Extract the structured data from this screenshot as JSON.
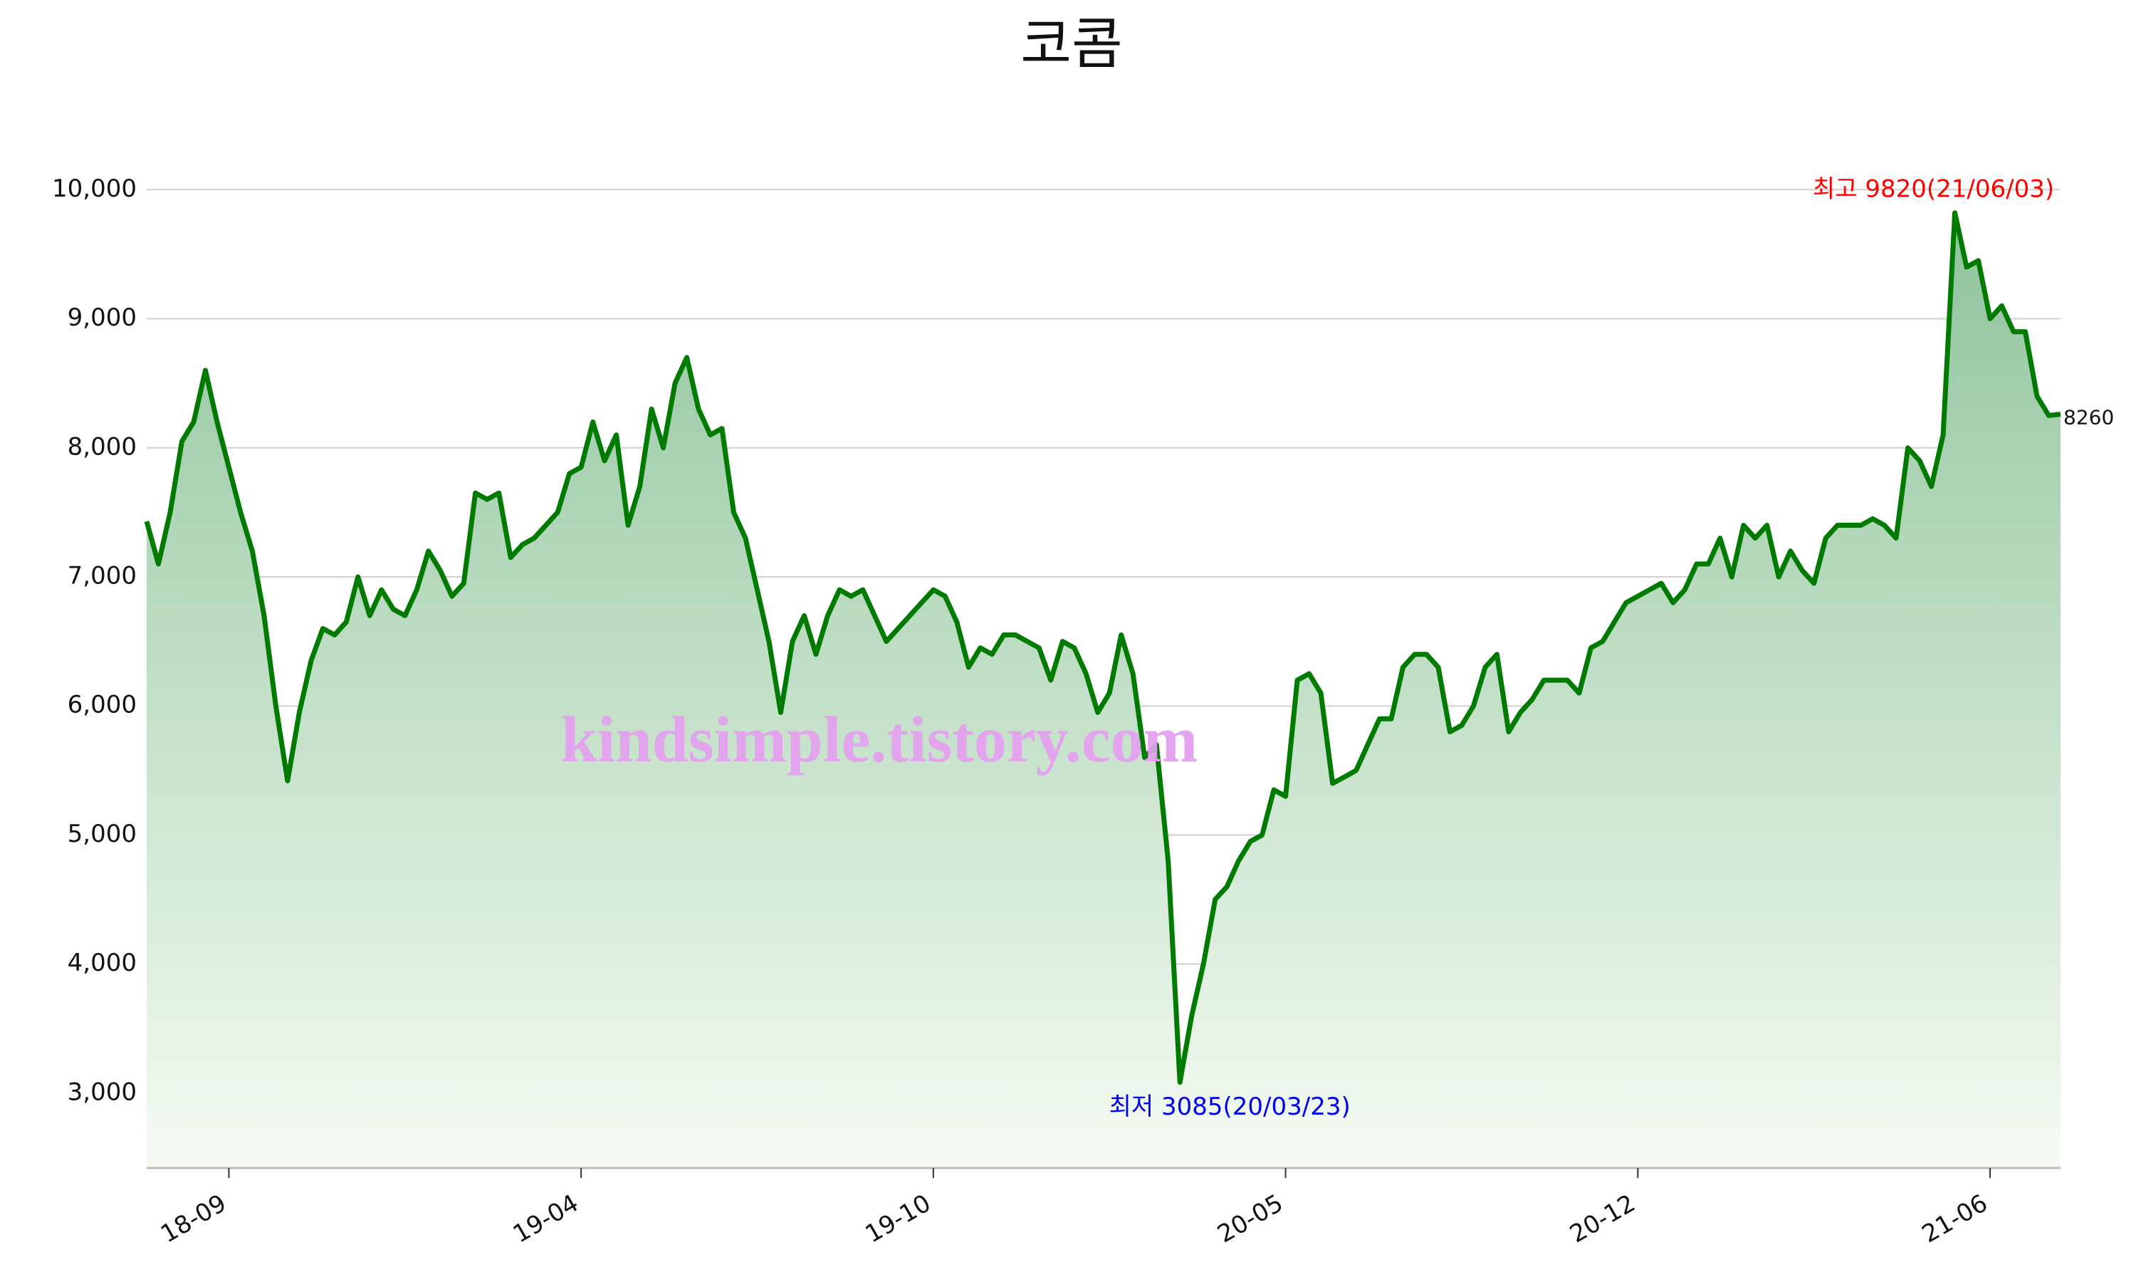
{
  "chart_data": {
    "type": "area-line",
    "title": "코콤",
    "watermark": "kindsimple.tistory.com",
    "color": "#007a00",
    "fill_top": "#8fc49c",
    "fill_bottom": "#f5fbf3",
    "grid": true,
    "categories": [
      null,
      null,
      null,
      null,
      null,
      null,
      null,
      "18-09",
      null,
      null,
      null,
      null,
      null,
      null,
      null,
      null,
      null,
      null,
      null,
      null,
      null,
      null,
      null,
      null,
      null,
      null,
      null,
      null,
      null,
      null,
      null,
      null,
      null,
      null,
      null,
      null,
      null,
      "19-04",
      null,
      null,
      null,
      null,
      null,
      null,
      null,
      null,
      null,
      null,
      null,
      null,
      null,
      null,
      null,
      null,
      null,
      null,
      null,
      null,
      null,
      null,
      null,
      null,
      null,
      null,
      null,
      null,
      null,
      "19-10",
      null,
      null,
      null,
      null,
      null,
      null,
      null,
      null,
      null,
      null,
      null,
      null,
      null,
      null,
      null,
      null,
      null,
      null,
      null,
      null,
      null,
      null,
      null,
      null,
      null,
      null,
      null,
      null,
      null,
      "20-05",
      null,
      null,
      null,
      null,
      null,
      null,
      null,
      null,
      null,
      null,
      null,
      null,
      null,
      null,
      null,
      null,
      null,
      null,
      null,
      null,
      null,
      null,
      null,
      null,
      null,
      null,
      null,
      null,
      null,
      "20-12",
      null,
      null,
      null,
      null,
      null,
      null,
      null,
      null,
      null,
      null,
      null,
      null,
      null,
      null,
      null,
      null,
      null,
      null,
      null,
      null,
      null,
      null,
      null,
      null,
      null,
      null,
      null,
      null,
      null,
      "21-06",
      null,
      null,
      null,
      null,
      null,
      null
    ],
    "values": [
      7430,
      7100,
      7500,
      8050,
      8200,
      8600,
      8200,
      7850,
      7500,
      7200,
      6700,
      6000,
      5420,
      5950,
      6350,
      6600,
      6550,
      6650,
      7000,
      6700,
      6900,
      6750,
      6700,
      6900,
      7200,
      7050,
      6850,
      6950,
      7650,
      7600,
      7650,
      7150,
      7250,
      7300,
      7400,
      7500,
      7800,
      7850,
      8200,
      7900,
      8100,
      7400,
      7700,
      8300,
      8000,
      8500,
      8700,
      8300,
      8100,
      8150,
      7500,
      7300,
      6900,
      6500,
      5950,
      6500,
      6700,
      6400,
      6700,
      6900,
      6850,
      6900,
      6700,
      6500,
      6600,
      6700,
      6800,
      6900,
      6850,
      6650,
      6300,
      6450,
      6400,
      6550,
      6550,
      6500,
      6450,
      6200,
      6500,
      6450,
      6250,
      5950,
      6100,
      6550,
      6250,
      5600,
      5700,
      4800,
      3085,
      3600,
      4000,
      4500,
      4600,
      4800,
      4950,
      5000,
      5350,
      5300,
      6200,
      6250,
      6100,
      5400,
      5450,
      5500,
      5700,
      5900,
      5900,
      6300,
      6400,
      6400,
      6300,
      5800,
      5850,
      6000,
      6300,
      6400,
      5800,
      5950,
      6050,
      6200,
      6200,
      6200,
      6100,
      6450,
      6500,
      6650,
      6800,
      6850,
      6900,
      6950,
      6800,
      6900,
      7100,
      7100,
      7300,
      7000,
      7400,
      7300,
      7400,
      7000,
      7200,
      7050,
      6950,
      7300,
      7400,
      7400,
      7400,
      7450,
      7400,
      7300,
      8000,
      7900,
      7700,
      8100,
      9820,
      9400,
      9450,
      9000,
      9100,
      8900,
      8900,
      8400,
      8250,
      8260
    ],
    "ylim": [
      2420,
      10410
    ],
    "yticks": [
      {
        "value": 3000,
        "label": "3,000"
      },
      {
        "value": 4000,
        "label": "4,000"
      },
      {
        "value": 5000,
        "label": "5,000"
      },
      {
        "value": 6000,
        "label": "6,000"
      },
      {
        "value": 7000,
        "label": "7,000"
      },
      {
        "value": 8000,
        "label": "8,000"
      },
      {
        "value": 9000,
        "label": "9,000"
      },
      {
        "value": 10000,
        "label": "10,000"
      }
    ],
    "annotations": [
      {
        "text": "최고 9820(21/06/03)",
        "color": "#ff0000"
      },
      {
        "text": "최저 3085(20/03/23)",
        "color": "#0000ee"
      }
    ]
  }
}
